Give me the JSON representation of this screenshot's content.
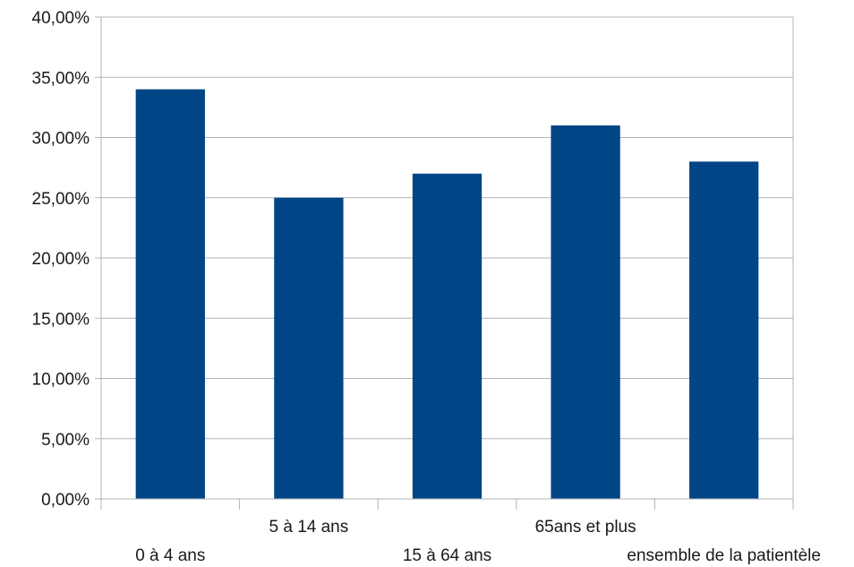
{
  "chart_data": {
    "type": "bar",
    "title": "",
    "xlabel": "",
    "ylabel": "",
    "categories": [
      "0 à 4 ans",
      "5 à 14 ans",
      "15 à 64 ans",
      "65ans et plus",
      "ensemble de la patientèle"
    ],
    "values": [
      34,
      25,
      27,
      31,
      28
    ],
    "ylim": [
      0,
      40
    ],
    "y_ticks": [
      0,
      5,
      10,
      15,
      20,
      25,
      30,
      35,
      40
    ],
    "y_tick_labels": [
      "0,00%",
      "5,00%",
      "10,00%",
      "15,00%",
      "20,00%",
      "25,00%",
      "30,00%",
      "35,00%",
      "40,00%"
    ],
    "grid": true,
    "legend": "none",
    "bar_color": "#004586"
  }
}
